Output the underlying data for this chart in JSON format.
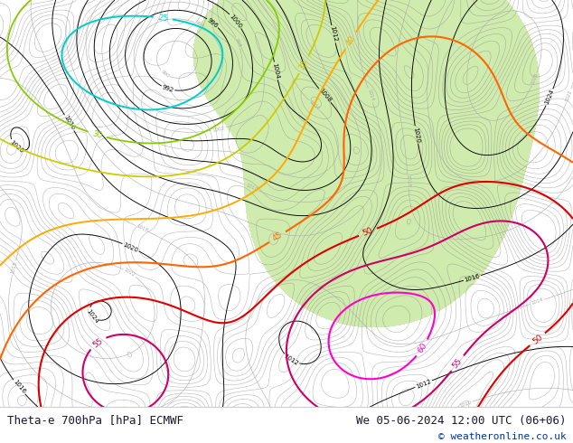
{
  "title_left": "Theta-e 700hPa [hPa] ECMWF",
  "title_right": "We 05-06-2024 12:00 UTC (06+06)",
  "copyright": "© weatheronline.co.uk",
  "bg_color": "#ffffff",
  "text_color_dark": "#1a1a2e",
  "text_color_blue": "#003399",
  "fig_width": 6.34,
  "fig_height": 4.9,
  "dpi": 100,
  "font_size_label": 9,
  "font_size_copy": 8,
  "map_bg_white": "#f5f5f5",
  "map_bg_green": "#c8e8a0",
  "theta_e_colors": {
    "cyan": "#00cccc",
    "yellow_green": "#aacc00",
    "light_green": "#88cc44",
    "yellow": "#ddcc00",
    "orange_light": "#ffaa00",
    "orange": "#ff7700",
    "orange_dark": "#ff5500",
    "red_light": "#ff3300",
    "red": "#dd0000",
    "dark_red": "#aa0000",
    "magenta": "#ee00bb",
    "pink": "#ff44dd"
  }
}
